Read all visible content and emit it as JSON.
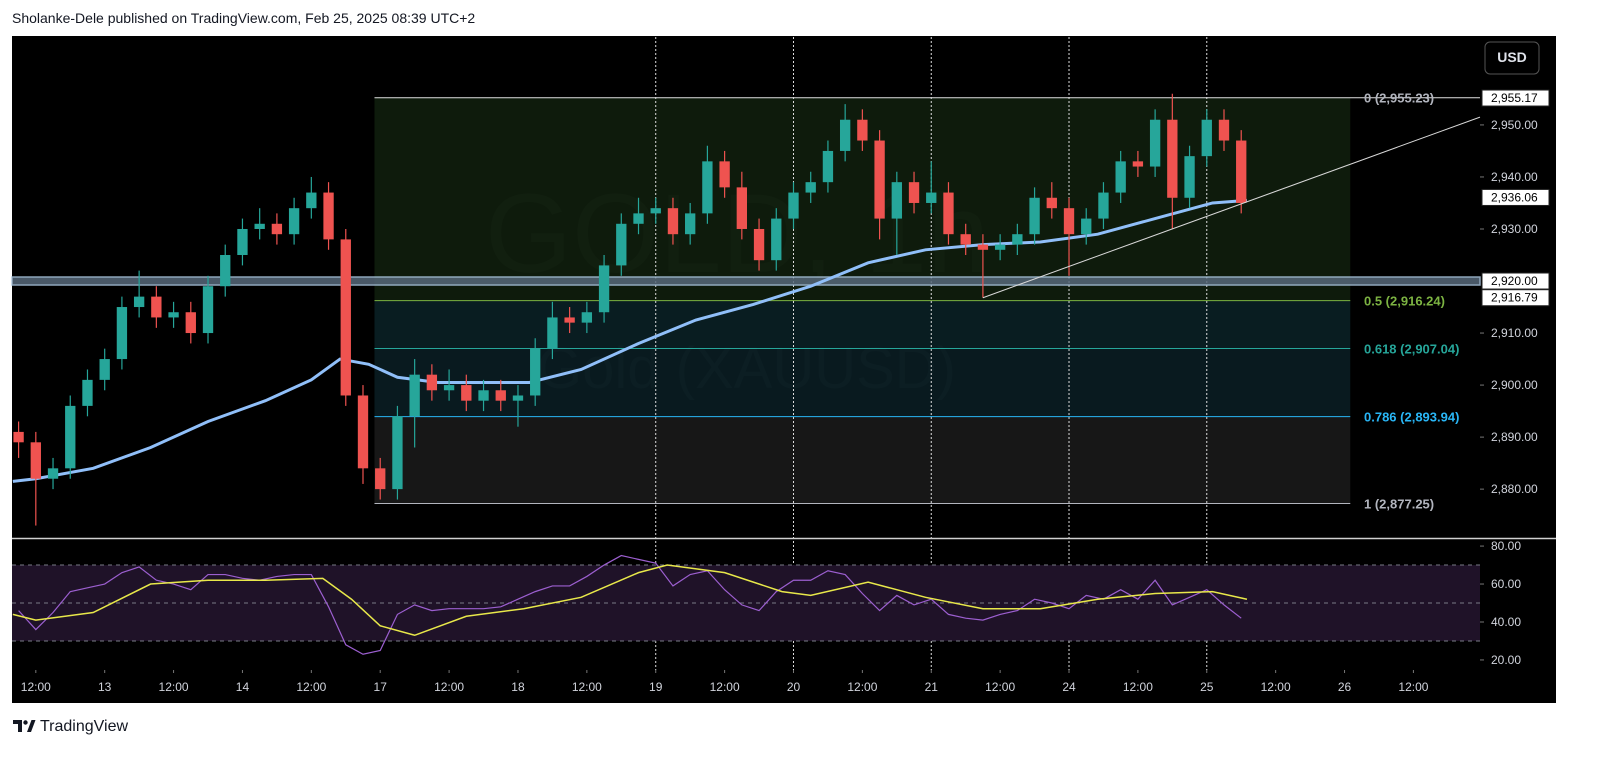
{
  "header": "Sholanke-Dele published on TradingView.com, Feb 25, 2025 08:39 UTC+2",
  "footer": "TradingView",
  "currency_button": "USD",
  "chart_data": [
    {
      "type": "candlestick",
      "watermark_title": "GOLD, 1h",
      "watermark_subtitle": "Gold (XAUUSD)",
      "up_color": "#26a69a",
      "down_color": "#ef5350",
      "xlim": [
        -3.8,
        251.6
      ],
      "ylim": [
        2870.8,
        2966.9
      ],
      "yticks": [
        {
          "value": 2950,
          "label": "2,950.00"
        },
        {
          "value": 2940,
          "label": "2,940.00"
        },
        {
          "value": 2930,
          "label": "2,930.00"
        },
        {
          "value": 2910,
          "label": "2,910.00"
        },
        {
          "value": 2900,
          "label": "2,900.00"
        },
        {
          "value": 2890,
          "label": "2,890.00"
        },
        {
          "value": 2880,
          "label": "2,880.00"
        }
      ],
      "x": [
        -3,
        0,
        3,
        6,
        9,
        12,
        15,
        18,
        21,
        24,
        27,
        30,
        33,
        36,
        39,
        42,
        45,
        48,
        51,
        54,
        57,
        60,
        63,
        66,
        69,
        72,
        75,
        78,
        81,
        84,
        87,
        90,
        93,
        96,
        99,
        102,
        105,
        108,
        111,
        114,
        117,
        120,
        123,
        126,
        129,
        132,
        135,
        138,
        141,
        144,
        147,
        150,
        153,
        156,
        159,
        162,
        165,
        168,
        171,
        174,
        177,
        180,
        183,
        186,
        189,
        192,
        195,
        198,
        201,
        204,
        207,
        210
      ],
      "open": [
        2891,
        2889,
        2882,
        2884,
        2896,
        2901,
        2905,
        2915,
        2917,
        2913,
        2914,
        2910,
        2919,
        2925,
        2930,
        2931,
        2929,
        2934,
        2937,
        2928,
        2898,
        2884,
        2880,
        2894,
        2902,
        2899,
        2900,
        2897,
        2899,
        2897,
        2898,
        2907,
        2913,
        2912,
        2914,
        2923,
        2931,
        2933,
        2934,
        2929,
        2933,
        2943,
        2938,
        2930,
        2924,
        2932,
        2937,
        2939,
        2945,
        2951,
        2947,
        2932,
        2939,
        2935,
        2937,
        2929,
        2927,
        2926,
        2927,
        2929,
        2936,
        2934,
        2929,
        2932,
        2937,
        2943,
        2942,
        2951,
        2936,
        2944,
        2951,
        2947
      ],
      "high": [
        2893,
        2891,
        2886,
        2898,
        2903,
        2907,
        2917,
        2922,
        2919,
        2916,
        2916,
        2921,
        2927,
        2932,
        2934,
        2933,
        2936,
        2940,
        2939,
        2930,
        2900,
        2886,
        2896,
        2905,
        2904,
        2903,
        2902,
        2901,
        2901,
        2900,
        2909,
        2916,
        2915,
        2916,
        2925,
        2933,
        2936,
        2936,
        2936,
        2935,
        2946,
        2945,
        2941,
        2932,
        2934,
        2939,
        2941,
        2947,
        2954,
        2953,
        2949,
        2941,
        2941,
        2943,
        2939,
        2931,
        2929,
        2929,
        2931,
        2938,
        2939,
        2936,
        2934,
        2939,
        2945,
        2945,
        2953,
        2956,
        2946,
        2953,
        2953,
        2949
      ],
      "low": [
        2886,
        2873,
        2880,
        2882,
        2894,
        2899,
        2903,
        2913,
        2911,
        2911,
        2908,
        2908,
        2917,
        2923,
        2928,
        2927,
        2927,
        2932,
        2926,
        2896,
        2881,
        2878,
        2878,
        2888,
        2897,
        2897,
        2895,
        2895,
        2895,
        2892,
        2896,
        2905,
        2910,
        2910,
        2912,
        2921,
        2929,
        2931,
        2927,
        2927,
        2931,
        2936,
        2928,
        2922,
        2922,
        2930,
        2935,
        2937,
        2943,
        2945,
        2928,
        2925,
        2933,
        2933,
        2927,
        2925,
        2916.8,
        2924,
        2925,
        2927,
        2932,
        2921,
        2927,
        2930,
        2935,
        2940,
        2940,
        2930,
        2934,
        2942,
        2945,
        2933
      ],
      "close": [
        2889,
        2882,
        2884,
        2896,
        2901,
        2905,
        2915,
        2917,
        2913,
        2914,
        2910,
        2919,
        2925,
        2930,
        2931,
        2929,
        2934,
        2937,
        2928,
        2898,
        2884,
        2880,
        2894,
        2902,
        2899,
        2900,
        2897,
        2899,
        2897,
        2898,
        2907,
        2913,
        2912,
        2914,
        2923,
        2931,
        2933,
        2934,
        2929,
        2933,
        2943,
        2938,
        2930,
        2924,
        2932,
        2937,
        2939,
        2945,
        2951,
        2947,
        2932,
        2939,
        2935,
        2937,
        2929,
        2927,
        2926,
        2927,
        2929,
        2936,
        2934,
        2929,
        2932,
        2937,
        2943,
        2942,
        2951,
        2936,
        2944,
        2951,
        2947,
        2935
      ],
      "moving_average": {
        "color": "#90bff9",
        "x": [
          -4,
          0,
          10,
          20,
          30,
          40,
          48,
          53,
          58,
          63,
          70,
          80,
          86,
          95,
          105,
          115,
          125,
          135,
          145,
          155,
          165,
          175,
          185,
          195,
          205,
          211
        ],
        "values": [
          2881.5,
          2882,
          2884,
          2888,
          2893,
          2897,
          2901,
          2905,
          2904,
          2901.5,
          2900.5,
          2900.5,
          2900.5,
          2903,
          2908,
          2912.5,
          2915.5,
          2919,
          2923.5,
          2926,
          2927,
          2927.5,
          2929,
          2932,
          2935,
          2935.5
        ]
      },
      "vlines": [
        108,
        132,
        156,
        180,
        204
      ],
      "fib_xrange": [
        59,
        229
      ],
      "fib_levels": [
        {
          "level": 0,
          "price": 2955.23,
          "label": "0 (2,955.23)",
          "color": "#b2b5be"
        },
        {
          "level": 0.5,
          "price": 2916.24,
          "label": "0.5 (2,916.24)",
          "color": "#7cb342"
        },
        {
          "level": 0.618,
          "price": 2907.04,
          "label": "0.618 (2,907.04)",
          "color": "#26a69a"
        },
        {
          "level": 0.786,
          "price": 2893.94,
          "label": "0.786 (2,893.94)",
          "color": "#29b6f6"
        },
        {
          "level": 1,
          "price": 2877.25,
          "label": "1 (2,877.25)",
          "color": "#b2b5be"
        }
      ],
      "fib_zone_colors": [
        "#0f1e0d",
        "#0a2025",
        "#0a1d22",
        "#1a1a1a"
      ],
      "hlines": [
        {
          "value": 2920,
          "color": "#a9c4dc"
        }
      ],
      "trendline": {
        "x": [
          165,
          251.6
        ],
        "values": [
          2916.79,
          2951.5
        ],
        "color": "#d8d8d8"
      },
      "price_labels": [
        {
          "value": 2955.17,
          "label": "2,955.17"
        },
        {
          "value": 2936.06,
          "label": "2,936.06"
        },
        {
          "value": 2920,
          "label": "2,920.00"
        },
        {
          "value": 2916.79,
          "label": "2,916.79"
        }
      ]
    },
    {
      "type": "line",
      "xlim": [
        -3.8,
        251.6
      ],
      "ylim": [
        14.7,
        83.2
      ],
      "yticks": [
        {
          "value": 80,
          "label": "80.00"
        },
        {
          "value": 60,
          "label": "60.00"
        },
        {
          "value": 40,
          "label": "40.00"
        },
        {
          "value": 20,
          "label": "20.00"
        }
      ],
      "bands": [
        30,
        50,
        70
      ],
      "band_color": "#1f1228",
      "xticks": [
        {
          "value": 0,
          "label": "12:00"
        },
        {
          "value": 12,
          "label": "13"
        },
        {
          "value": 24,
          "label": "12:00"
        },
        {
          "value": 36,
          "label": "14"
        },
        {
          "value": 48,
          "label": "12:00"
        },
        {
          "value": 60,
          "label": "17"
        },
        {
          "value": 72,
          "label": "12:00"
        },
        {
          "value": 84,
          "label": "18"
        },
        {
          "value": 96,
          "label": "12:00"
        },
        {
          "value": 108,
          "label": "19"
        },
        {
          "value": 120,
          "label": "12:00"
        },
        {
          "value": 132,
          "label": "20"
        },
        {
          "value": 144,
          "label": "12:00"
        },
        {
          "value": 156,
          "label": "21"
        },
        {
          "value": 168,
          "label": "12:00"
        },
        {
          "value": 180,
          "label": "24"
        },
        {
          "value": 192,
          "label": "12:00"
        },
        {
          "value": 204,
          "label": "25"
        },
        {
          "value": 216,
          "label": "12:00"
        },
        {
          "value": 228,
          "label": "26"
        },
        {
          "value": 240,
          "label": "12:00"
        }
      ],
      "series": [
        {
          "color": "#9c5fd0",
          "x": [
            -3,
            0,
            3,
            6,
            9,
            12,
            15,
            18,
            21,
            24,
            27,
            30,
            33,
            36,
            39,
            42,
            45,
            48,
            51,
            54,
            57,
            60,
            63,
            66,
            69,
            72,
            75,
            78,
            81,
            84,
            87,
            90,
            93,
            96,
            99,
            102,
            105,
            108,
            111,
            114,
            117,
            120,
            123,
            126,
            129,
            132,
            135,
            138,
            141,
            144,
            147,
            150,
            153,
            156,
            159,
            162,
            165,
            168,
            171,
            174,
            177,
            180,
            183,
            186,
            189,
            192,
            195,
            198,
            201,
            204,
            207,
            210
          ],
          "values": [
            46,
            36,
            45,
            56,
            58,
            60,
            66,
            69,
            62,
            60,
            57,
            65,
            65,
            63,
            62,
            64,
            65,
            65,
            48,
            28,
            23,
            25,
            44,
            49,
            46,
            47,
            47,
            47,
            48,
            52,
            56,
            59,
            59,
            64,
            70,
            75,
            73,
            71,
            59,
            65,
            67,
            57,
            49,
            46,
            56,
            62,
            62,
            67,
            65,
            55,
            46,
            54,
            49,
            52,
            44,
            42,
            41,
            44,
            46,
            52,
            50,
            47,
            54,
            52,
            57,
            52,
            62,
            49,
            53,
            57,
            49,
            42
          ]
        },
        {
          "color": "#e8e84a",
          "x": [
            -4,
            0,
            10,
            20,
            30,
            40,
            50,
            55,
            60,
            66,
            75,
            85,
            95,
            105,
            110,
            120,
            130,
            135,
            145,
            155,
            165,
            175,
            185,
            195,
            205,
            211
          ],
          "values": [
            44,
            41,
            45,
            60,
            62,
            62,
            63,
            52,
            38,
            33,
            43,
            47,
            53,
            66,
            70,
            66,
            56,
            54,
            61,
            53,
            47,
            47,
            52,
            55,
            56,
            52
          ]
        }
      ]
    }
  ]
}
